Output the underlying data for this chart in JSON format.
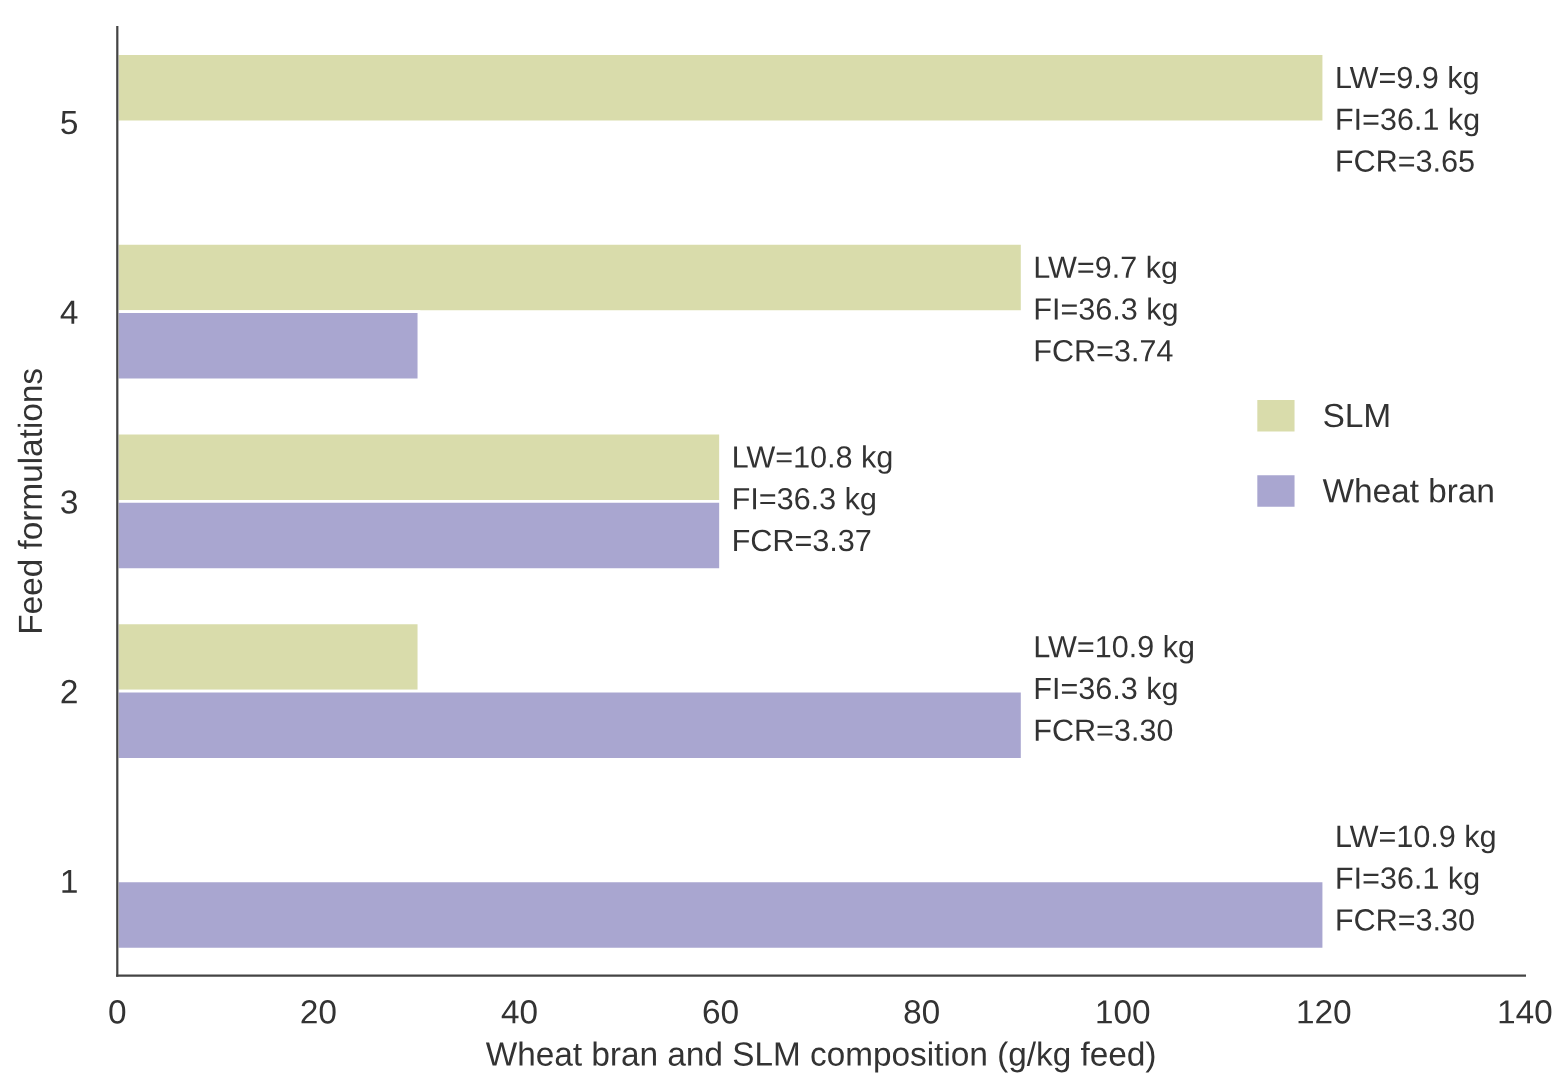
{
  "chart_data": {
    "type": "bar",
    "orientation": "horizontal",
    "xlabel": "Wheat bran and SLM composition (g/kg feed)",
    "ylabel": "Feed formulations",
    "categories": [
      "5",
      "4",
      "3",
      "2",
      "1"
    ],
    "series": [
      {
        "name": "SLM",
        "color": "#d9dcab",
        "values": [
          120,
          90,
          60,
          30,
          null
        ]
      },
      {
        "name": "Wheat bran",
        "color": "#a9a6d0",
        "values": [
          null,
          30,
          60,
          90,
          120
        ]
      }
    ],
    "xlim": [
      0,
      140
    ],
    "xticks": [
      0,
      20,
      40,
      60,
      80,
      100,
      120,
      140
    ],
    "grid": false,
    "legend": "right",
    "annotations": [
      {
        "text": "LW=9.9 kg\nFI=36.1 kg\nFCR=3.65",
        "x": 120,
        "y": "5"
      },
      {
        "text": "LW=9.7 kg\nFI=36.3 kg\nFCR=3.74",
        "x": 90,
        "y": "4"
      },
      {
        "text": "LW=10.8 kg\nFI=36.3 kg\nFCR=3.37",
        "x": 60,
        "y": "3"
      },
      {
        "text": "LW=10.9 kg\nFI=36.3 kg\nFCR=3.30",
        "x": 90,
        "y": "2"
      },
      {
        "text": "LW=10.9 kg\nFI=36.1 kg\nFCR=3.30",
        "x": 120,
        "y": "1"
      }
    ]
  }
}
